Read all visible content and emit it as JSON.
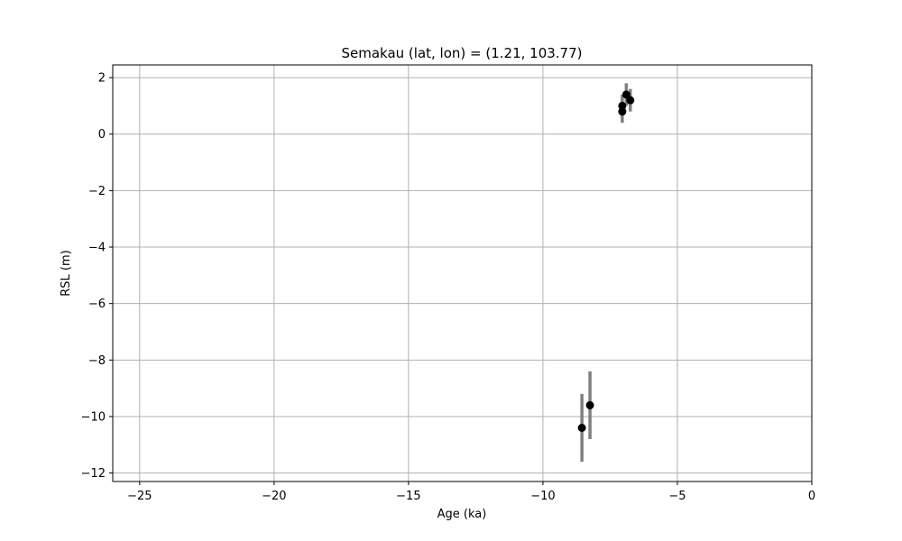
{
  "chart_data": {
    "type": "scatter",
    "title": "Semakau (lat, lon) = (1.21, 103.77)",
    "xlabel": "Age (ka)",
    "ylabel": "RSL (m)",
    "xlim": [
      -26,
      0
    ],
    "ylim": [
      -12.3,
      2.45
    ],
    "grid": true,
    "x_ticks": [
      -25,
      -20,
      -15,
      -10,
      -5,
      0
    ],
    "x_tick_labels": [
      "−25",
      "−20",
      "−15",
      "−10",
      "−5",
      "0"
    ],
    "y_ticks": [
      2,
      0,
      -2,
      -4,
      -6,
      -8,
      -10,
      -12
    ],
    "y_tick_labels": [
      "2",
      "0",
      "−2",
      "−4",
      "−6",
      "−8",
      "−10",
      "−12"
    ],
    "marker_color": "#000000",
    "errorbar_color": "#808080",
    "grid_color": "#b0b0b0",
    "points": [
      {
        "x": -8.55,
        "y": -10.4,
        "ylow": -11.6,
        "yhigh": -9.2
      },
      {
        "x": -8.25,
        "y": -9.6,
        "ylow": -10.8,
        "yhigh": -8.4
      },
      {
        "x": -7.05,
        "y": 0.8,
        "ylow": 0.4,
        "yhigh": 1.2
      },
      {
        "x": -7.05,
        "y": 1.0,
        "ylow": 0.6,
        "yhigh": 1.4
      },
      {
        "x": -6.9,
        "y": 1.4,
        "ylow": 1.0,
        "yhigh": 1.8
      },
      {
        "x": -6.75,
        "y": 1.2,
        "ylow": 0.8,
        "yhigh": 1.6
      }
    ]
  }
}
